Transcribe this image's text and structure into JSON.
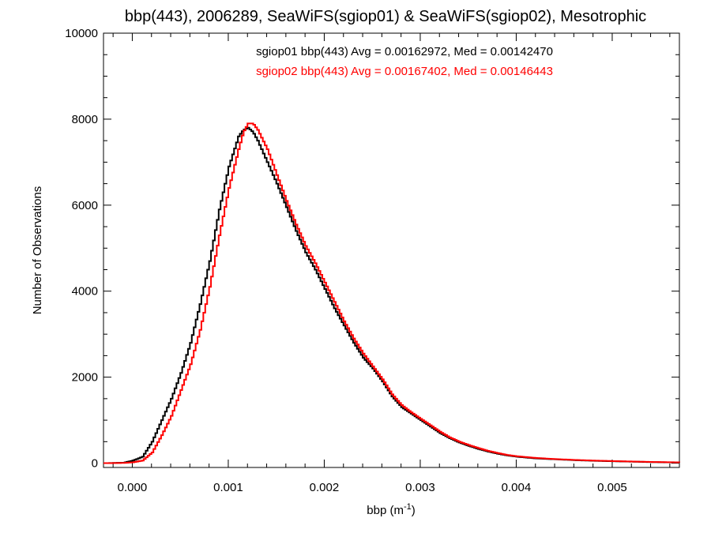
{
  "chart_data": {
    "type": "line",
    "title": "bbp(443), 2006289, SeaWiFS(sgiop01) & SeaWiFS(sgiop02), Mesotrophic",
    "xlabel_base": "bbp (m",
    "xlabel_sup": "-1",
    "xlabel_close": ")",
    "ylabel": "Number of Observations",
    "xlim": [
      -0.0003,
      0.0057
    ],
    "ylim": [
      -100,
      10000
    ],
    "x_ticks": [
      0.0,
      0.001,
      0.002,
      0.003,
      0.004,
      0.005
    ],
    "x_tick_labels": [
      "0.000",
      "0.001",
      "0.002",
      "0.003",
      "0.004",
      "0.005"
    ],
    "y_ticks": [
      0,
      2000,
      4000,
      6000,
      8000,
      10000
    ],
    "y_tick_labels": [
      "0",
      "2000",
      "4000",
      "6000",
      "8000",
      "10000"
    ],
    "step": "histogram",
    "grid": false,
    "series": [
      {
        "name": "sgiop01",
        "annotation": "sgiop01 bbp(443) Avg = 0.00162972, Med = 0.00142470",
        "color": "#000000",
        "points": [
          [
            -0.0003,
            0
          ],
          [
            -0.0001,
            10
          ],
          [
            0.0,
            60
          ],
          [
            0.0001,
            150
          ],
          [
            0.0002,
            500
          ],
          [
            0.0003,
            1000
          ],
          [
            0.0004,
            1500
          ],
          [
            0.0005,
            2100
          ],
          [
            0.0006,
            2800
          ],
          [
            0.0007,
            3700
          ],
          [
            0.0008,
            4700
          ],
          [
            0.0009,
            5900
          ],
          [
            0.001,
            6900
          ],
          [
            0.0011,
            7600
          ],
          [
            0.00115,
            7750
          ],
          [
            0.0012,
            7800
          ],
          [
            0.00125,
            7700
          ],
          [
            0.0013,
            7500
          ],
          [
            0.0014,
            7000
          ],
          [
            0.0015,
            6500
          ],
          [
            0.0016,
            5950
          ],
          [
            0.0017,
            5400
          ],
          [
            0.0018,
            4900
          ],
          [
            0.0019,
            4500
          ],
          [
            0.002,
            4050
          ],
          [
            0.0021,
            3600
          ],
          [
            0.0022,
            3200
          ],
          [
            0.0023,
            2800
          ],
          [
            0.0024,
            2450
          ],
          [
            0.0025,
            2200
          ],
          [
            0.0026,
            1900
          ],
          [
            0.0027,
            1550
          ],
          [
            0.0028,
            1300
          ],
          [
            0.0029,
            1150
          ],
          [
            0.003,
            1000
          ],
          [
            0.0031,
            850
          ],
          [
            0.0032,
            700
          ],
          [
            0.0033,
            580
          ],
          [
            0.0034,
            480
          ],
          [
            0.0035,
            400
          ],
          [
            0.0036,
            330
          ],
          [
            0.0037,
            270
          ],
          [
            0.0038,
            220
          ],
          [
            0.0039,
            180
          ],
          [
            0.004,
            150
          ],
          [
            0.0042,
            110
          ],
          [
            0.0044,
            90
          ],
          [
            0.0046,
            70
          ],
          [
            0.0048,
            55
          ],
          [
            0.005,
            45
          ],
          [
            0.0052,
            35
          ],
          [
            0.0054,
            25
          ],
          [
            0.0057,
            15
          ]
        ]
      },
      {
        "name": "sgiop02",
        "annotation": "sgiop02 bbp(443) Avg = 0.00167402, Med = 0.00146443",
        "color": "#ff0000",
        "points": [
          [
            -0.0003,
            0
          ],
          [
            -0.0001,
            5
          ],
          [
            0.0,
            20
          ],
          [
            0.0001,
            60
          ],
          [
            0.0002,
            250
          ],
          [
            0.0003,
            650
          ],
          [
            0.0004,
            1100
          ],
          [
            0.0005,
            1700
          ],
          [
            0.0006,
            2300
          ],
          [
            0.0007,
            3100
          ],
          [
            0.0008,
            4100
          ],
          [
            0.0009,
            5300
          ],
          [
            0.001,
            6400
          ],
          [
            0.0011,
            7300
          ],
          [
            0.00115,
            7700
          ],
          [
            0.0012,
            7900
          ],
          [
            0.00125,
            7900
          ],
          [
            0.0013,
            7750
          ],
          [
            0.0014,
            7300
          ],
          [
            0.0015,
            6700
          ],
          [
            0.0016,
            6100
          ],
          [
            0.0017,
            5550
          ],
          [
            0.0018,
            5050
          ],
          [
            0.0019,
            4650
          ],
          [
            0.002,
            4200
          ],
          [
            0.0021,
            3750
          ],
          [
            0.0022,
            3300
          ],
          [
            0.0023,
            2900
          ],
          [
            0.0024,
            2550
          ],
          [
            0.0025,
            2250
          ],
          [
            0.0026,
            1950
          ],
          [
            0.0027,
            1600
          ],
          [
            0.0028,
            1350
          ],
          [
            0.0029,
            1180
          ],
          [
            0.003,
            1030
          ],
          [
            0.0031,
            880
          ],
          [
            0.0032,
            730
          ],
          [
            0.0033,
            600
          ],
          [
            0.0034,
            500
          ],
          [
            0.0035,
            420
          ],
          [
            0.0036,
            350
          ],
          [
            0.0037,
            285
          ],
          [
            0.0038,
            235
          ],
          [
            0.0039,
            190
          ],
          [
            0.004,
            160
          ],
          [
            0.0042,
            120
          ],
          [
            0.0044,
            95
          ],
          [
            0.0046,
            75
          ],
          [
            0.0048,
            60
          ],
          [
            0.005,
            48
          ],
          [
            0.0052,
            38
          ],
          [
            0.0054,
            28
          ],
          [
            0.0057,
            18
          ]
        ]
      }
    ]
  }
}
